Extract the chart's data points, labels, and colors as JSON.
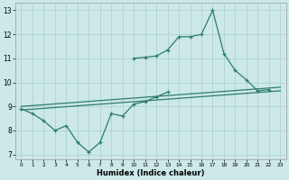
{
  "x_values": [
    0,
    1,
    2,
    3,
    4,
    5,
    6,
    7,
    8,
    9,
    10,
    11,
    12,
    13,
    14,
    15,
    16,
    17,
    18,
    19,
    20,
    21,
    22,
    23
  ],
  "line_bottom": [
    8.9,
    8.7,
    8.4,
    8.0,
    8.2,
    7.5,
    7.1,
    7.5,
    8.7,
    8.6,
    9.1,
    9.2,
    9.4,
    9.6,
    null,
    null,
    null,
    null,
    null,
    null,
    null,
    null,
    null,
    null
  ],
  "line_top": [
    null,
    null,
    null,
    null,
    null,
    null,
    null,
    null,
    null,
    null,
    11.0,
    11.05,
    11.1,
    11.35,
    11.9,
    11.9,
    12.0,
    13.0,
    11.2,
    10.5,
    10.1,
    9.65,
    9.7,
    null
  ],
  "line_ref1": [
    [
      0,
      9.0
    ],
    [
      23,
      9.8
    ]
  ],
  "line_ref2": [
    [
      0,
      8.85
    ],
    [
      23,
      9.65
    ]
  ],
  "xlabel": "Humidex (Indice chaleur)",
  "xlim": [
    -0.5,
    23.5
  ],
  "ylim": [
    6.8,
    13.3
  ],
  "yticks": [
    7,
    8,
    9,
    10,
    11,
    12,
    13
  ],
  "xticks": [
    0,
    1,
    2,
    3,
    4,
    5,
    6,
    7,
    8,
    9,
    10,
    11,
    12,
    13,
    14,
    15,
    16,
    17,
    18,
    19,
    20,
    21,
    22,
    23
  ],
  "line_color": "#2d7d6e",
  "bg_color": "#cce8e8",
  "grid_color": "#aacece"
}
